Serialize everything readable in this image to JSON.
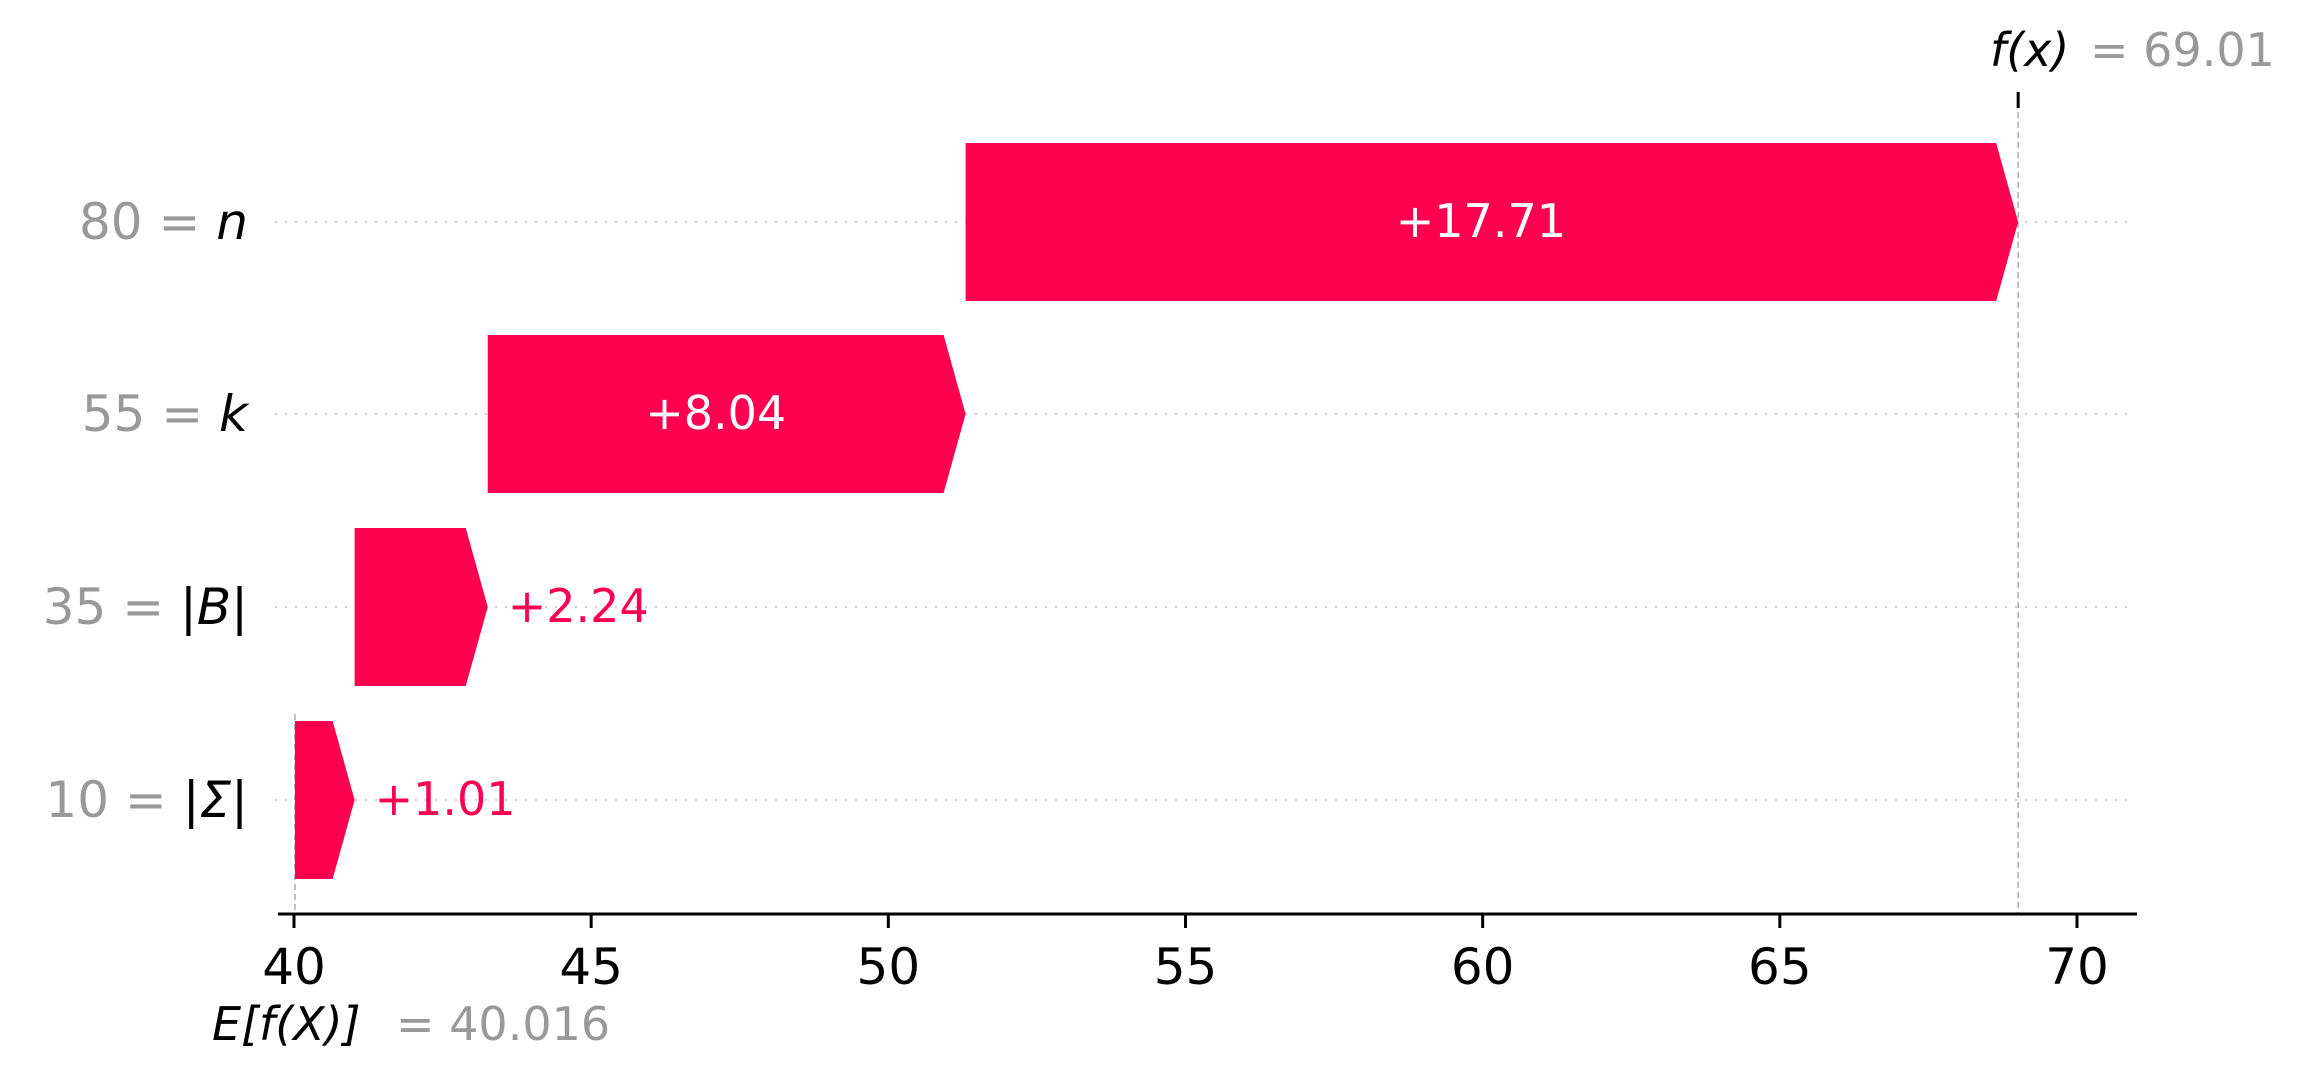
{
  "chart_data": {
    "type": "waterfall",
    "base_value": 40.016,
    "output_value": 69.01,
    "xlim": [
      39.8,
      70.8
    ],
    "x_ticks": [
      40,
      45,
      50,
      55,
      60,
      65,
      70
    ],
    "tick_labels": [
      "40",
      "45",
      "50",
      "55",
      "60",
      "65",
      "70"
    ],
    "features": [
      {
        "value_label": "80",
        "feature": "n",
        "contribution": 17.71,
        "contribution_label": "+17.71",
        "start": 51.3,
        "end": 69.01,
        "label_inside": true
      },
      {
        "value_label": "55",
        "feature": "k",
        "contribution": 8.04,
        "contribution_label": "+8.04",
        "start": 43.26,
        "end": 51.3,
        "label_inside": true
      },
      {
        "value_label": "35",
        "feature": "|B|",
        "contribution": 2.24,
        "contribution_label": "+2.24",
        "start": 41.02,
        "end": 43.26,
        "label_inside": false
      },
      {
        "value_label": "10",
        "feature": "|Σ|",
        "contribution": 1.01,
        "contribution_label": "+1.01",
        "start": 40.016,
        "end": 41.02,
        "label_inside": false
      }
    ],
    "fx_label": "f(x)",
    "fx_value_label": "= 69.01",
    "efx_label": "E[f(X)]",
    "efx_value_label": "= 40.016",
    "colors": {
      "positive": "#ff0051",
      "value_text": "#999999",
      "axis": "#000000",
      "grid": "#cccccc"
    }
  }
}
